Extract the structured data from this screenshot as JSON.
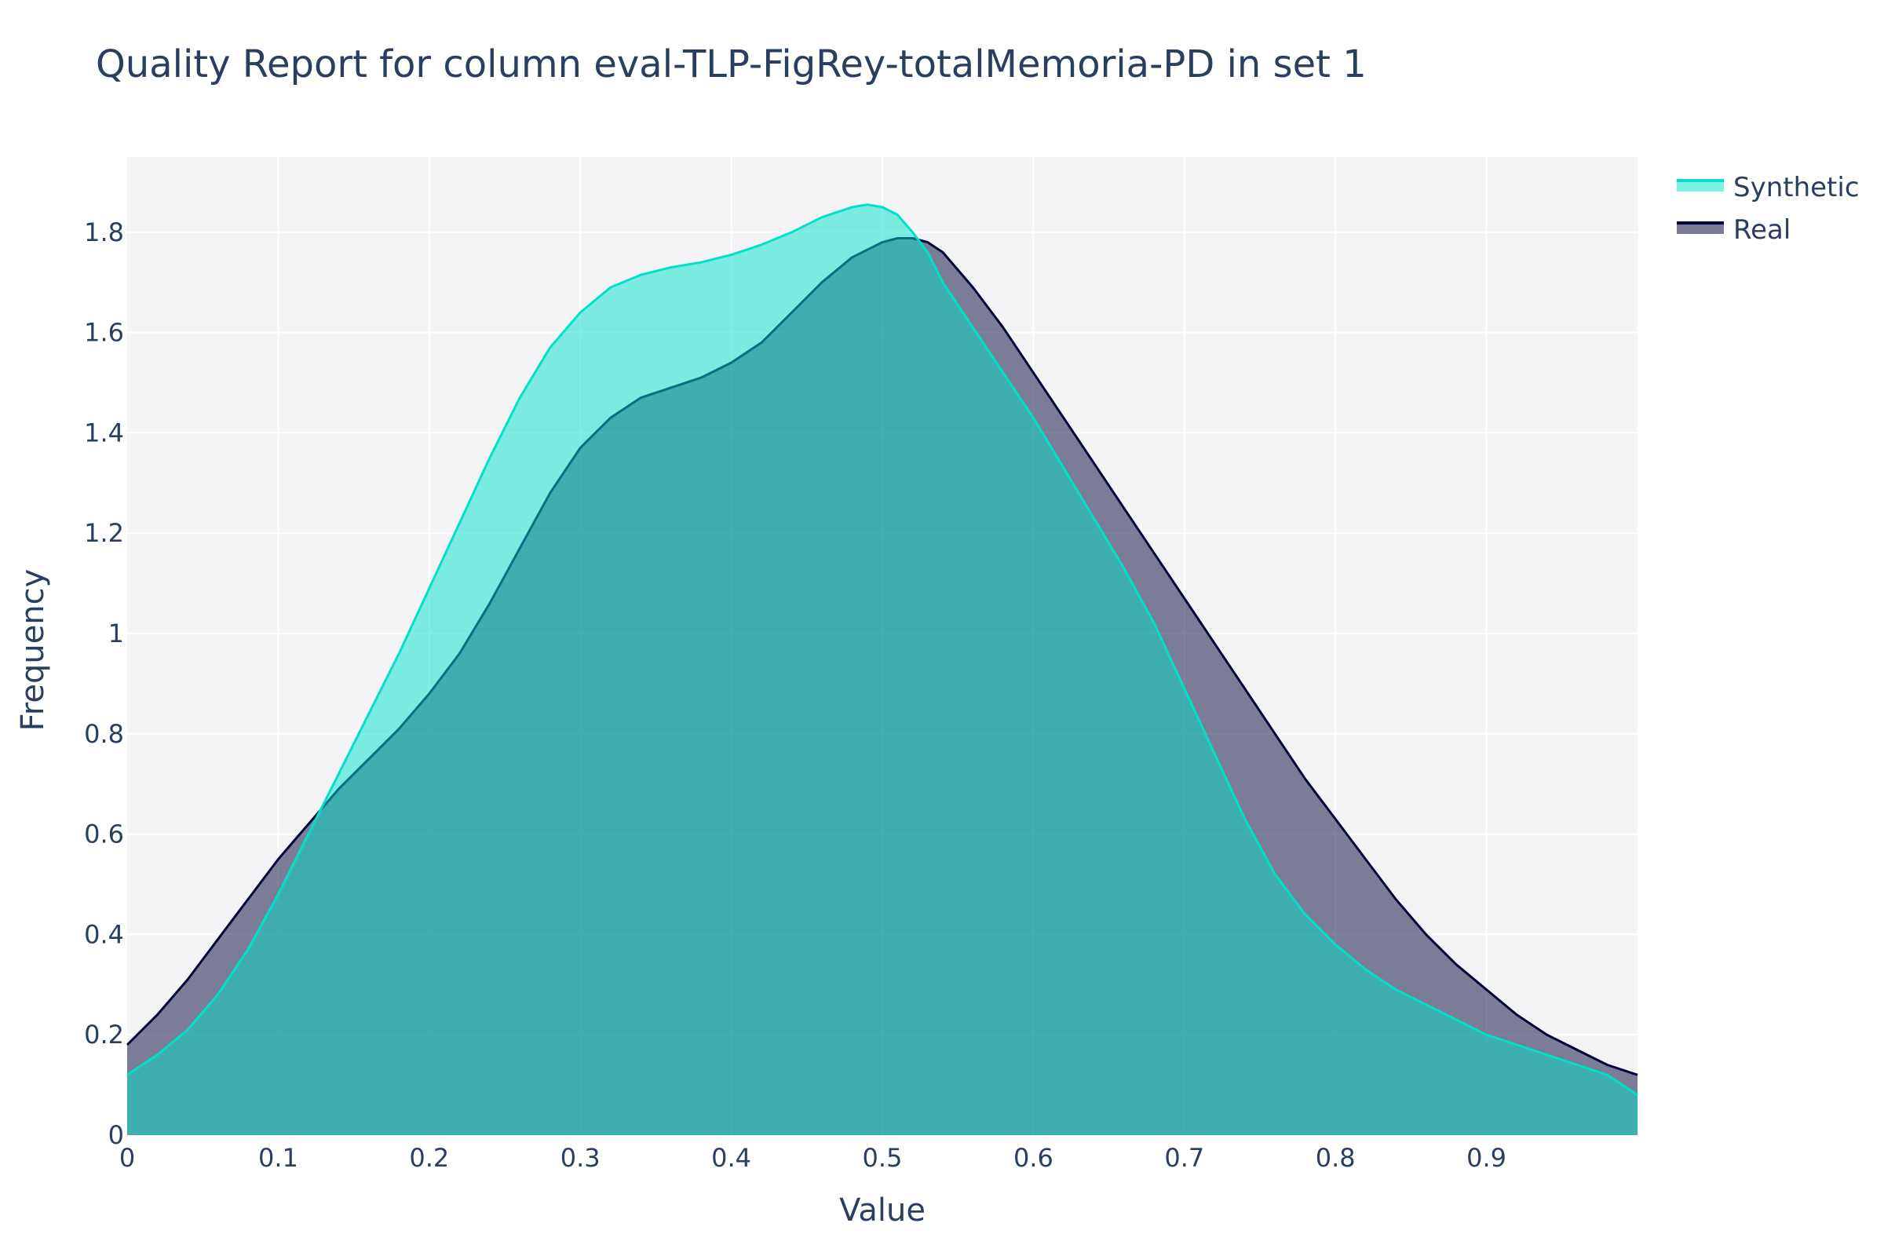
{
  "chart_data": {
    "type": "area",
    "title": "Quality Report for column eval-TLP-FigRey-totalMemoria-PD in set 1",
    "xlabel": "Value",
    "ylabel": "Frequency",
    "xlim": [
      0,
      1
    ],
    "ylim": [
      0,
      1.95
    ],
    "x_ticks": [
      0,
      0.1,
      0.2,
      0.3,
      0.4,
      0.5,
      0.6,
      0.7,
      0.8,
      0.9
    ],
    "x_tick_labels": [
      "0",
      "0.1",
      "0.2",
      "0.3",
      "0.4",
      "0.5",
      "0.6",
      "0.7",
      "0.8",
      "0.9"
    ],
    "y_ticks": [
      0,
      0.2,
      0.4,
      0.6,
      0.8,
      1,
      1.2,
      1.4,
      1.6,
      1.8
    ],
    "y_tick_labels": [
      "0",
      "0.2",
      "0.4",
      "0.6",
      "0.8",
      "1",
      "1.2",
      "1.4",
      "1.6",
      "1.8"
    ],
    "grid": true,
    "legend_position": "top-right",
    "colors": {
      "plot_background": "#f4f4f7",
      "grid": "#ffffff",
      "text": "#2a3f5f"
    },
    "series": [
      {
        "name": "Real",
        "line_color": "#01053a",
        "fill_color": "rgba(1,5,58,0.5)",
        "x": [
          0,
          0.02,
          0.04,
          0.06,
          0.08,
          0.1,
          0.12,
          0.14,
          0.16,
          0.18,
          0.2,
          0.22,
          0.24,
          0.26,
          0.28,
          0.3,
          0.32,
          0.34,
          0.36,
          0.38,
          0.4,
          0.42,
          0.44,
          0.46,
          0.48,
          0.5,
          0.51,
          0.52,
          0.53,
          0.54,
          0.56,
          0.58,
          0.6,
          0.62,
          0.64,
          0.66,
          0.68,
          0.7,
          0.72,
          0.74,
          0.76,
          0.78,
          0.8,
          0.82,
          0.84,
          0.86,
          0.88,
          0.9,
          0.92,
          0.94,
          0.96,
          0.98,
          1.0
        ],
        "y": [
          0.18,
          0.24,
          0.31,
          0.39,
          0.47,
          0.55,
          0.62,
          0.69,
          0.75,
          0.81,
          0.88,
          0.96,
          1.06,
          1.17,
          1.28,
          1.37,
          1.43,
          1.47,
          1.49,
          1.51,
          1.54,
          1.58,
          1.64,
          1.7,
          1.75,
          1.78,
          1.788,
          1.788,
          1.78,
          1.76,
          1.69,
          1.61,
          1.52,
          1.43,
          1.34,
          1.25,
          1.16,
          1.07,
          0.98,
          0.89,
          0.8,
          0.71,
          0.63,
          0.55,
          0.47,
          0.4,
          0.34,
          0.29,
          0.24,
          0.2,
          0.17,
          0.14,
          0.12
        ]
      },
      {
        "name": "Synthetic",
        "line_color": "#01e0c9",
        "fill_color": "rgba(1,224,201,0.5)",
        "x": [
          0,
          0.02,
          0.04,
          0.06,
          0.08,
          0.1,
          0.12,
          0.14,
          0.16,
          0.18,
          0.2,
          0.22,
          0.24,
          0.26,
          0.28,
          0.3,
          0.32,
          0.34,
          0.36,
          0.38,
          0.4,
          0.42,
          0.44,
          0.46,
          0.48,
          0.49,
          0.5,
          0.51,
          0.52,
          0.53,
          0.54,
          0.56,
          0.58,
          0.6,
          0.62,
          0.64,
          0.66,
          0.68,
          0.7,
          0.72,
          0.74,
          0.76,
          0.78,
          0.8,
          0.82,
          0.84,
          0.86,
          0.88,
          0.9,
          0.92,
          0.94,
          0.96,
          0.98,
          1.0
        ],
        "y": [
          0.12,
          0.16,
          0.21,
          0.28,
          0.37,
          0.48,
          0.6,
          0.72,
          0.84,
          0.96,
          1.09,
          1.22,
          1.35,
          1.47,
          1.57,
          1.64,
          1.69,
          1.715,
          1.73,
          1.74,
          1.755,
          1.775,
          1.8,
          1.83,
          1.85,
          1.855,
          1.85,
          1.835,
          1.8,
          1.76,
          1.7,
          1.61,
          1.52,
          1.43,
          1.33,
          1.23,
          1.13,
          1.02,
          0.89,
          0.76,
          0.63,
          0.52,
          0.44,
          0.38,
          0.33,
          0.29,
          0.26,
          0.23,
          0.2,
          0.18,
          0.16,
          0.14,
          0.12,
          0.08
        ]
      }
    ],
    "legend_order": [
      "Synthetic",
      "Real"
    ]
  }
}
